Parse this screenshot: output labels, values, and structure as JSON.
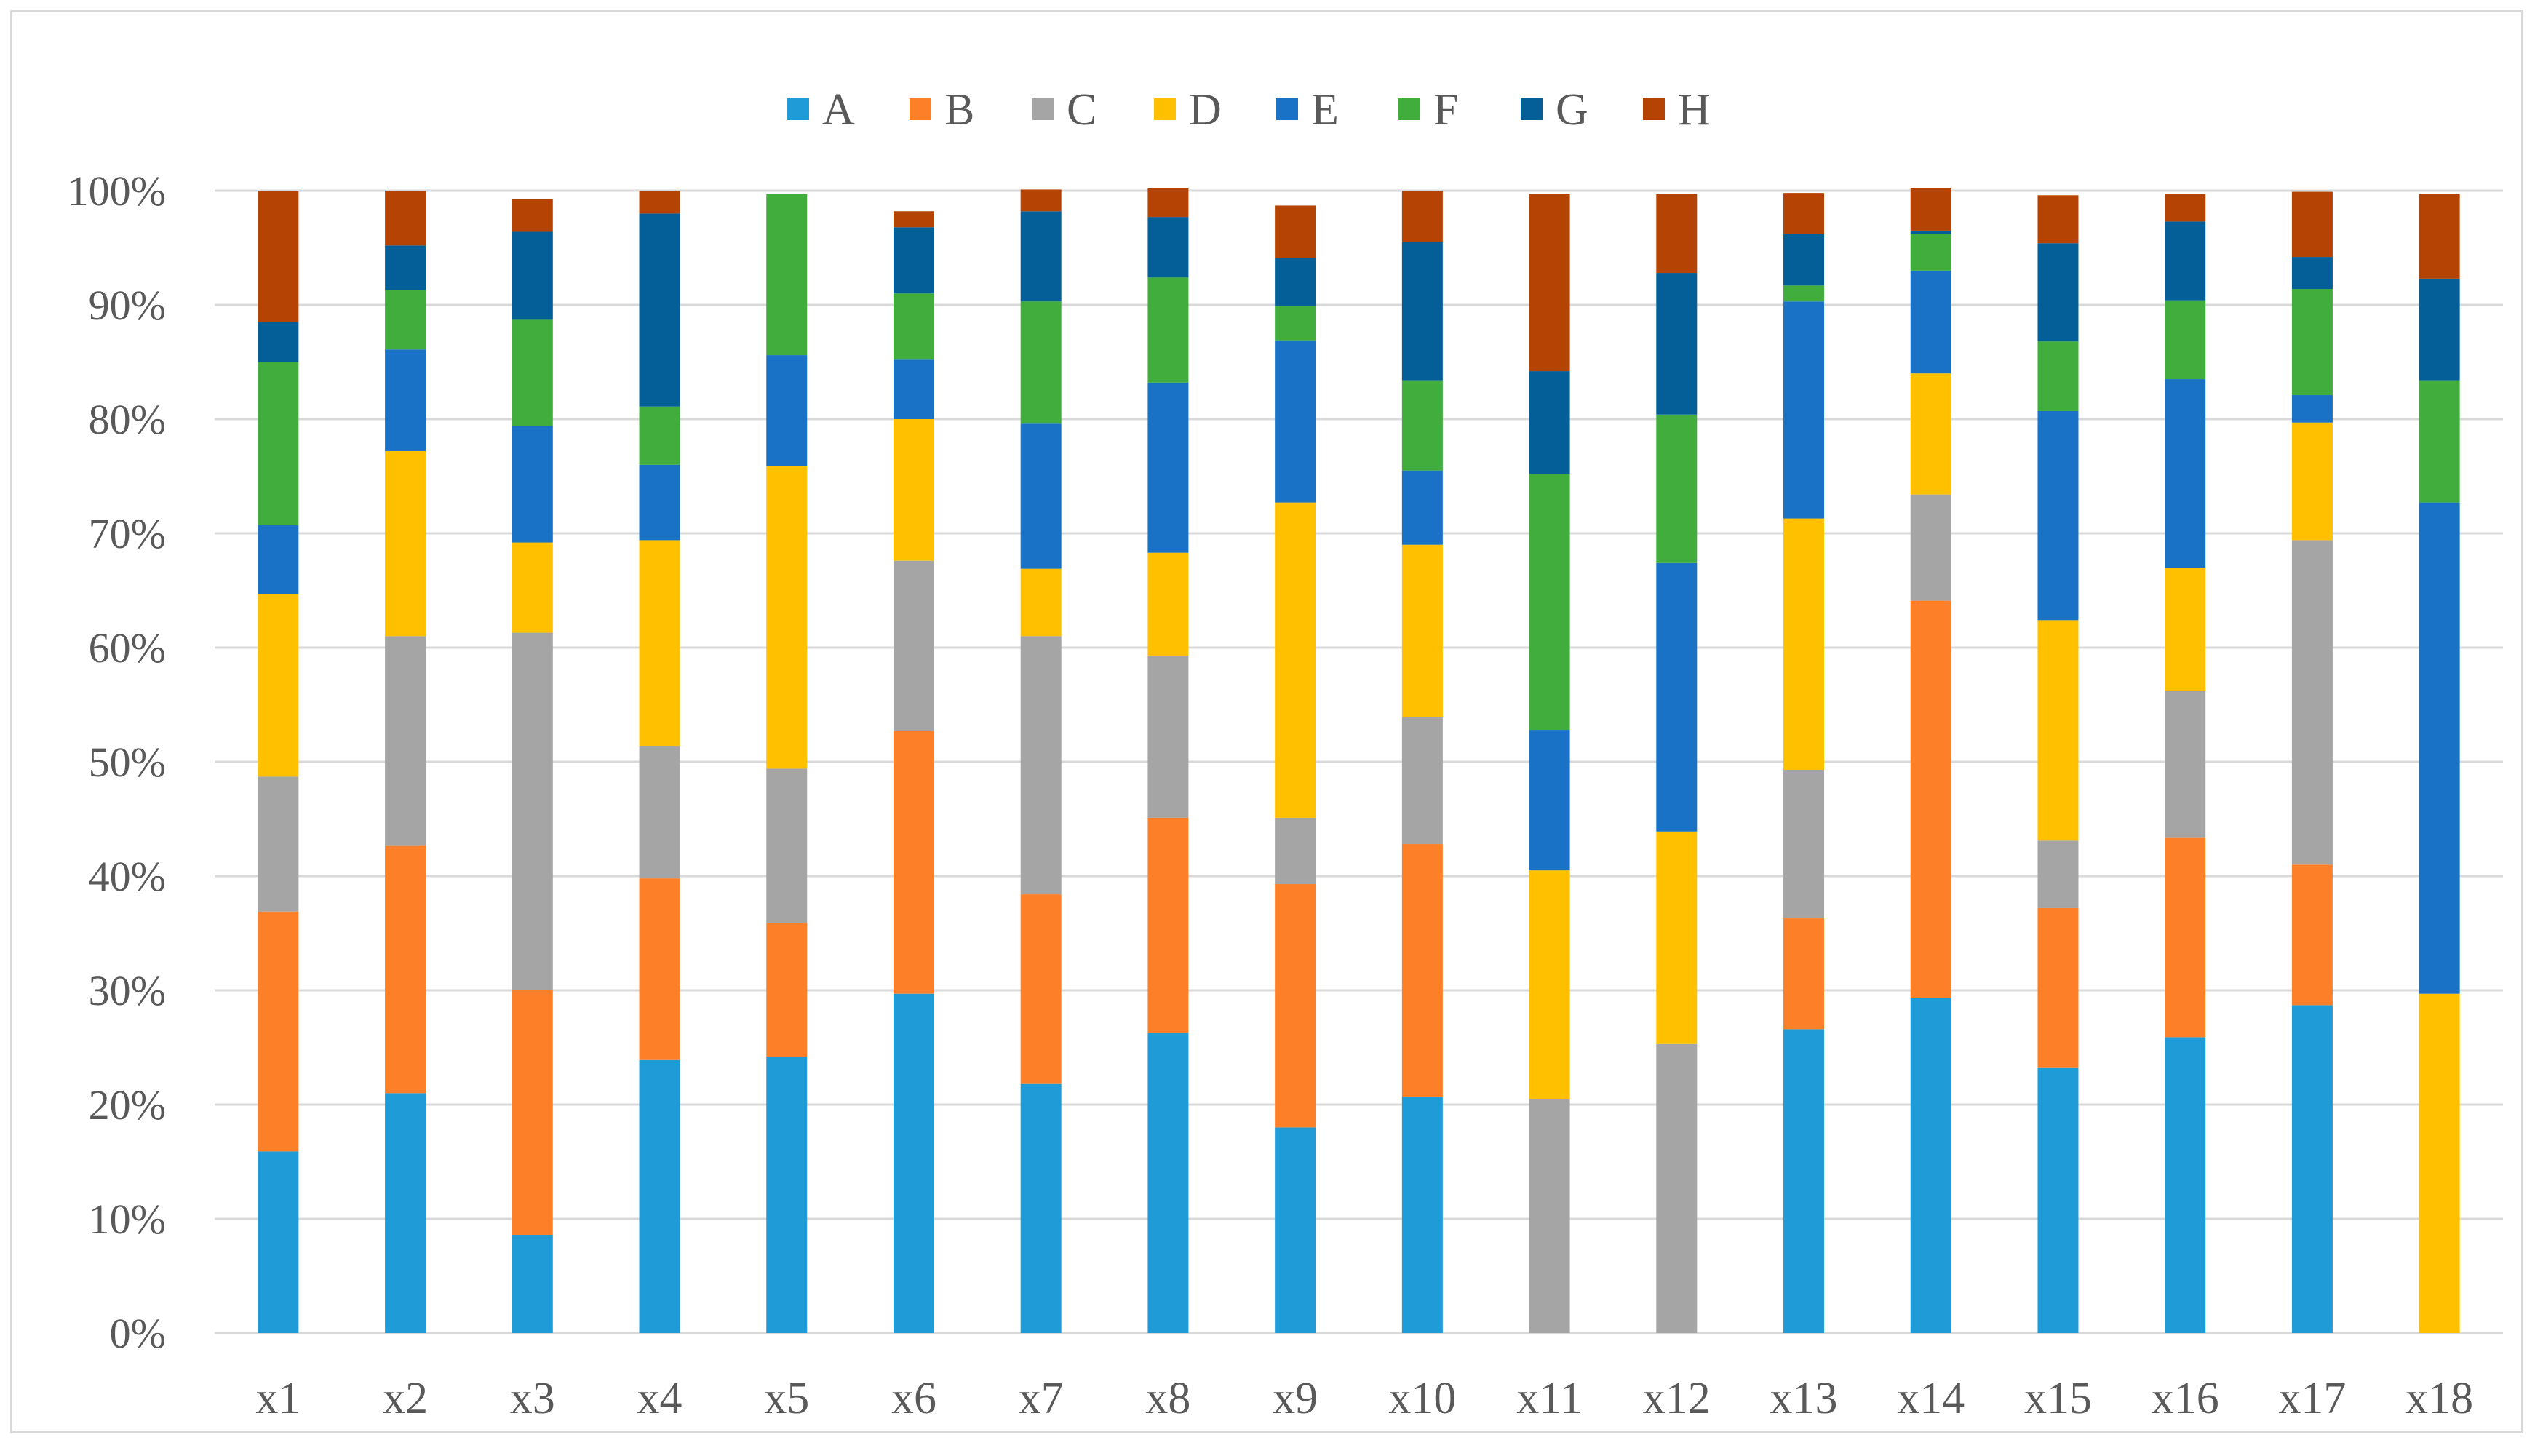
{
  "chart_data": {
    "type": "bar",
    "stacked": "percent",
    "title": "",
    "xlabel": "",
    "ylabel": "",
    "ylim": [
      0,
      100
    ],
    "y_ticks": [
      "0%",
      "10%",
      "20%",
      "30%",
      "40%",
      "50%",
      "60%",
      "70%",
      "80%",
      "90%",
      "100%"
    ],
    "legend_position": "top",
    "gridlines": true,
    "categories": [
      "x1",
      "x2",
      "x3",
      "x4",
      "x5",
      "x6",
      "x7",
      "x8",
      "x9",
      "x10",
      "x11",
      "x12",
      "x13",
      "x14",
      "x15",
      "x16",
      "x17",
      "x18"
    ],
    "series": [
      {
        "name": "A",
        "color": "#1f9bd7",
        "values": [
          15.9,
          21.0,
          8.6,
          23.9,
          24.2,
          29.7,
          21.8,
          26.3,
          18.0,
          20.7,
          0,
          0,
          26.6,
          29.3,
          23.2,
          25.9,
          28.7,
          0
        ]
      },
      {
        "name": "B",
        "color": "#fd7f28",
        "values": [
          21.0,
          21.7,
          21.4,
          15.9,
          11.7,
          23.0,
          16.6,
          18.8,
          21.3,
          22.1,
          0,
          0,
          9.7,
          34.8,
          14.0,
          17.5,
          12.3,
          0
        ]
      },
      {
        "name": "C",
        "color": "#a5a5a5",
        "values": [
          11.8,
          18.3,
          31.3,
          11.6,
          13.5,
          14.9,
          22.6,
          14.2,
          5.8,
          11.1,
          20.5,
          25.3,
          13.0,
          9.3,
          5.9,
          12.8,
          28.4,
          0
        ]
      },
      {
        "name": "D",
        "color": "#ffc000",
        "values": [
          16.0,
          16.2,
          7.9,
          18.0,
          26.5,
          12.4,
          5.9,
          9.0,
          27.6,
          15.1,
          20.0,
          18.6,
          22.0,
          10.6,
          19.3,
          10.8,
          10.3,
          29.7
        ]
      },
      {
        "name": "E",
        "color": "#1a72c7",
        "values": [
          6.0,
          8.9,
          10.2,
          6.6,
          9.7,
          5.2,
          12.7,
          14.9,
          14.2,
          6.5,
          12.3,
          23.5,
          19.0,
          9.0,
          18.3,
          16.5,
          2.4,
          43.0
        ]
      },
      {
        "name": "F",
        "color": "#40ad3d",
        "values": [
          14.3,
          5.2,
          9.3,
          5.1,
          14.1,
          5.8,
          10.7,
          9.2,
          3.0,
          7.9,
          22.4,
          13.0,
          1.4,
          3.2,
          6.1,
          6.9,
          9.3,
          10.7
        ]
      },
      {
        "name": "G",
        "color": "#045e97",
        "values": [
          3.5,
          3.9,
          7.7,
          16.9,
          0,
          5.8,
          7.9,
          5.3,
          4.2,
          12.1,
          9.0,
          12.4,
          4.5,
          0.3,
          8.6,
          6.9,
          2.8,
          8.9
        ]
      },
      {
        "name": "H",
        "color": "#b54303",
        "values": [
          11.5,
          4.8,
          2.9,
          2.0,
          0,
          1.4,
          1.9,
          2.5,
          4.6,
          4.5,
          15.5,
          6.9,
          3.6,
          3.7,
          4.2,
          2.4,
          5.7,
          7.4
        ]
      }
    ]
  }
}
